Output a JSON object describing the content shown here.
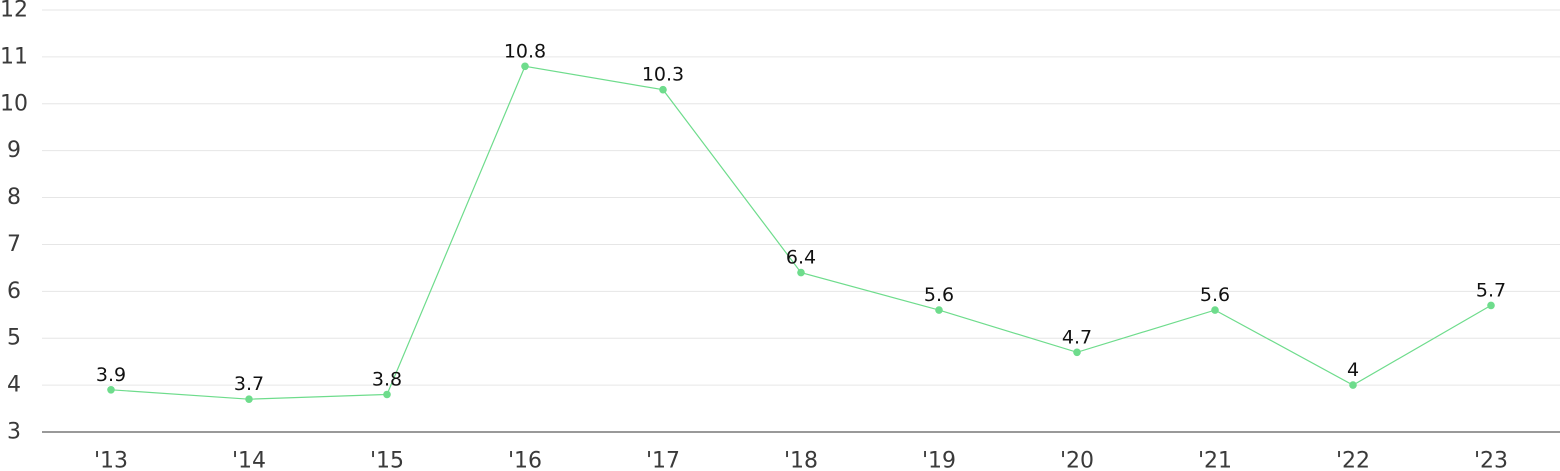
{
  "chart_data": {
    "type": "line",
    "title": "",
    "xlabel": "",
    "ylabel": "",
    "categories": [
      "'13",
      "'14",
      "'15",
      "'16",
      "'17",
      "'18",
      "'19",
      "'20",
      "'21",
      "'22",
      "'23"
    ],
    "series": [
      {
        "values": [
          3.9,
          3.7,
          3.8,
          10.8,
          10.3,
          6.4,
          5.6,
          4.7,
          5.6,
          4,
          5.7
        ],
        "color": "#6edc8c"
      }
    ],
    "data_labels": [
      "3.9",
      "3.7",
      "3.8",
      "10.8",
      "10.3",
      "6.4",
      "5.6",
      "4.7",
      "5.6",
      "4",
      "5.7"
    ],
    "ylim": [
      3,
      12
    ],
    "yticks": [
      "3",
      "4",
      "5",
      "6",
      "7",
      "8",
      "9",
      "10",
      "11",
      "12"
    ],
    "grid": true,
    "legend": "none"
  }
}
